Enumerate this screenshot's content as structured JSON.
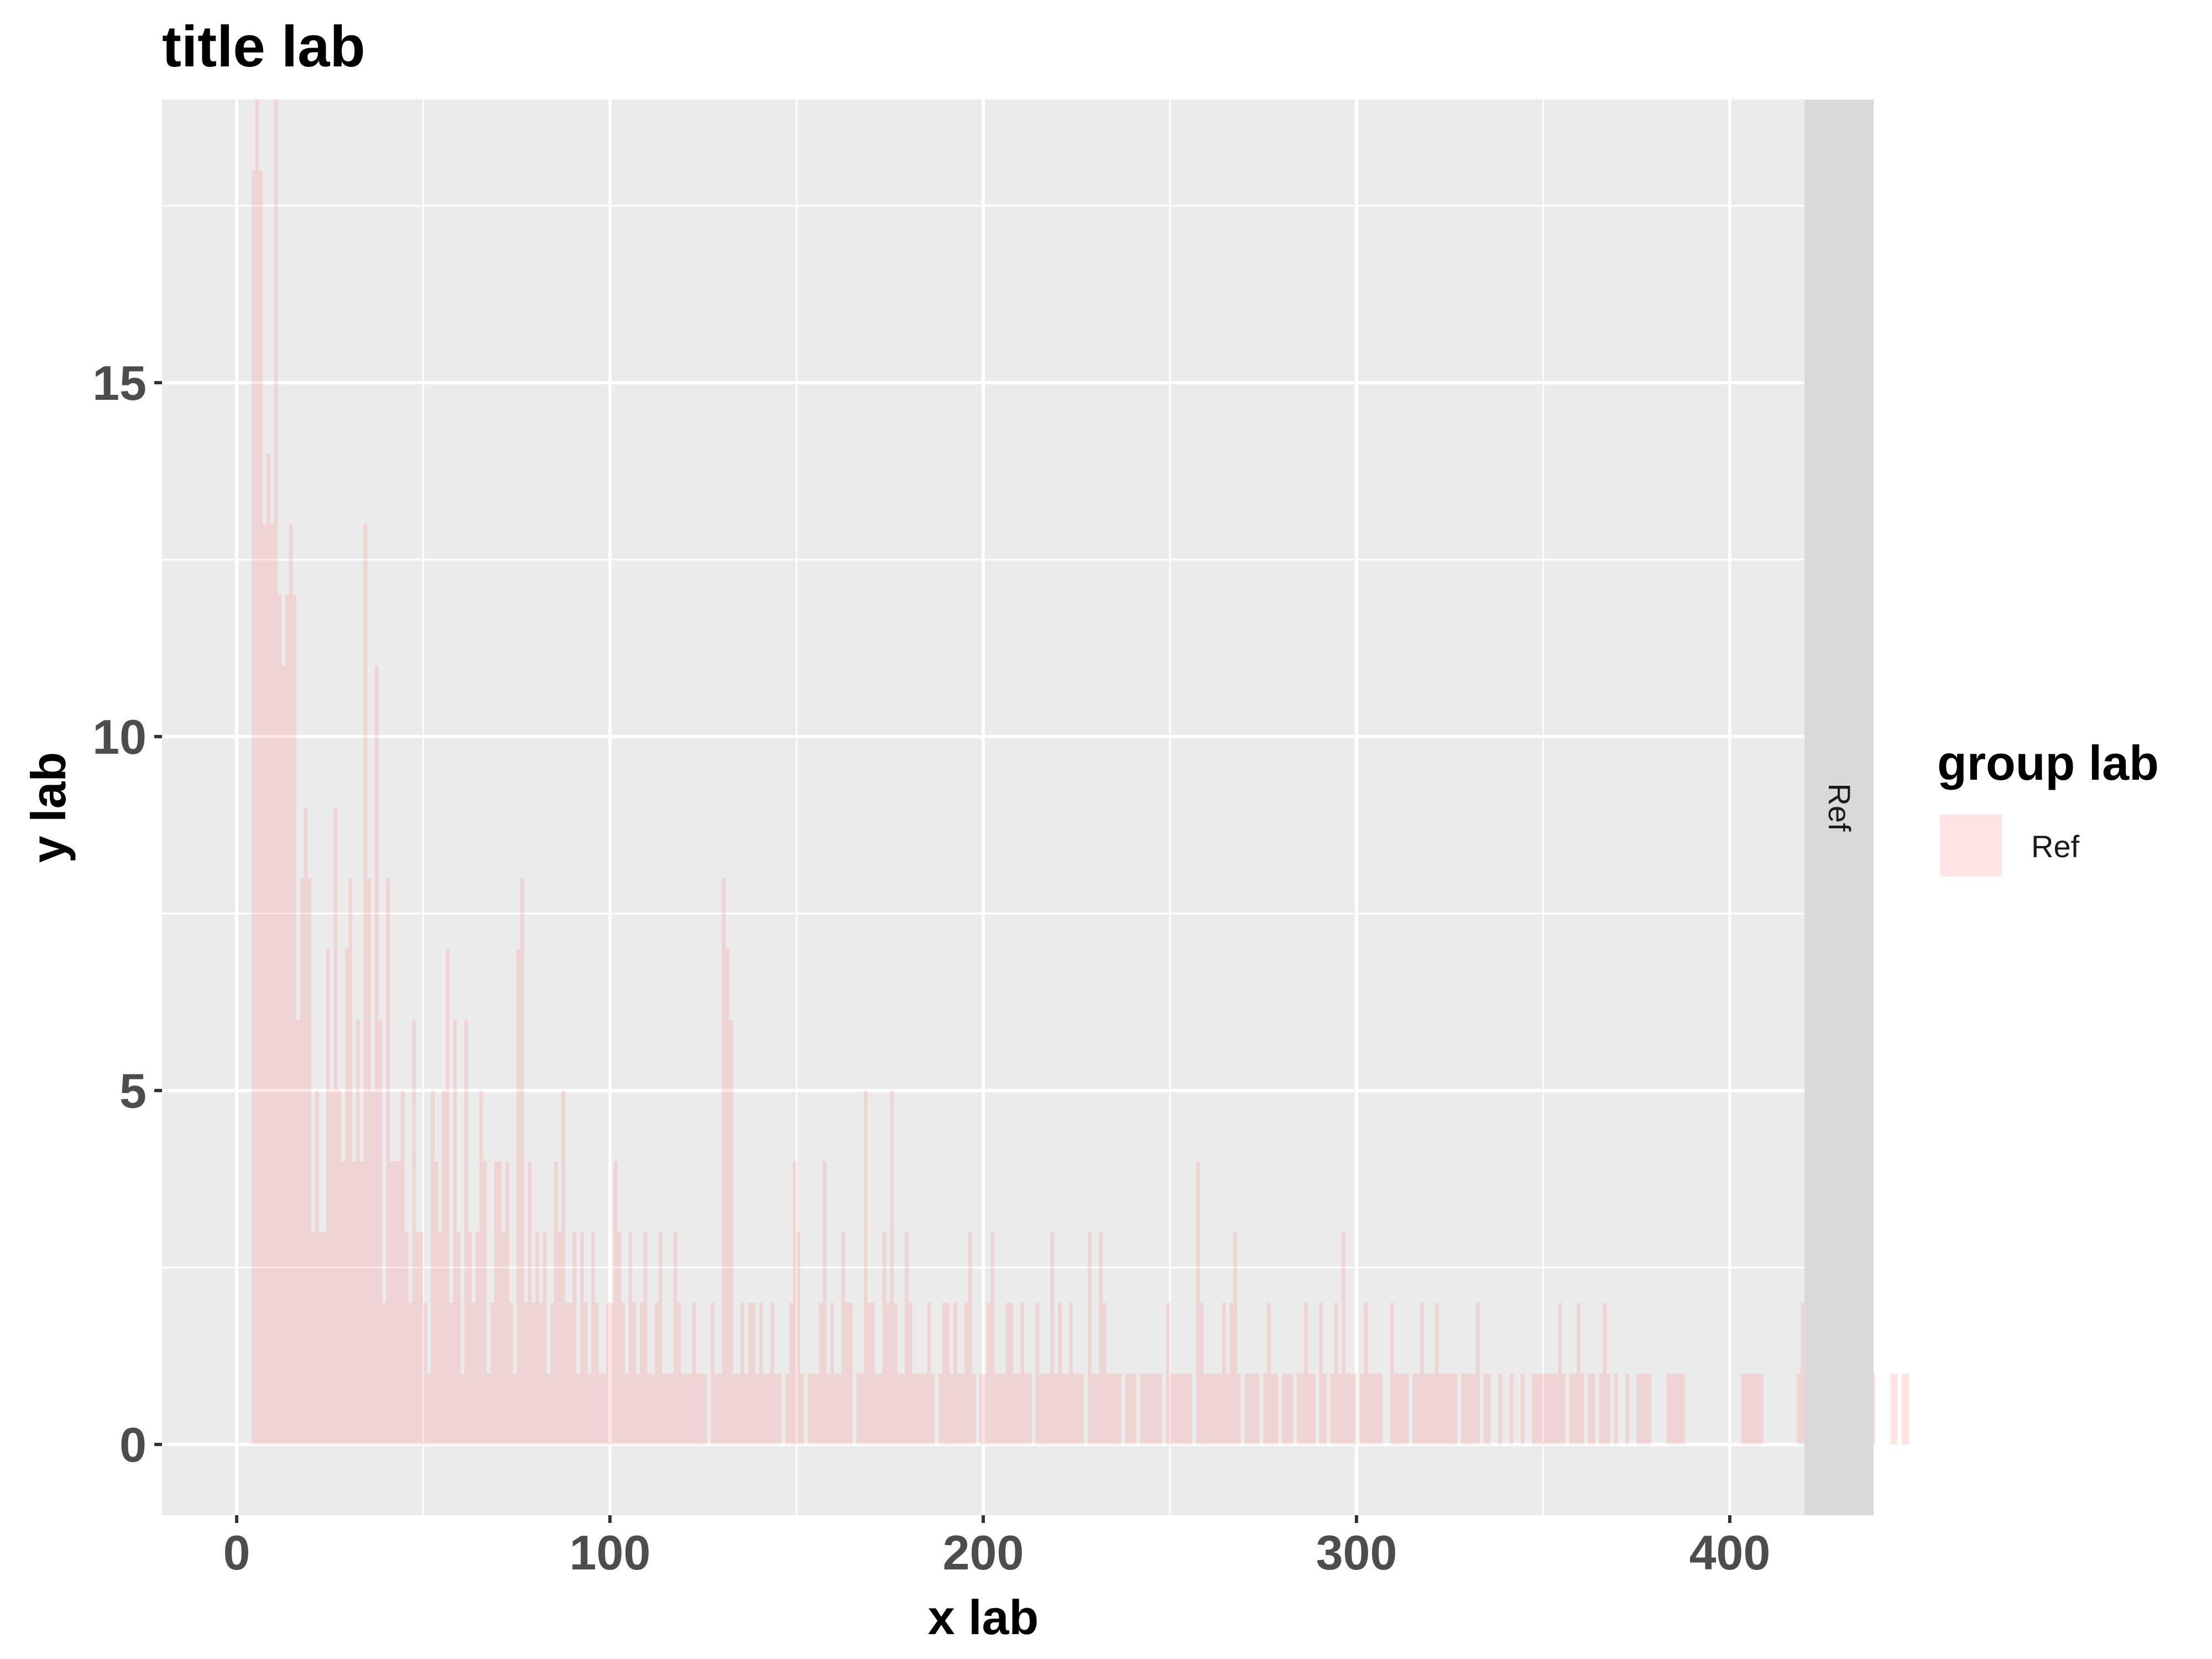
{
  "chart_data": {
    "type": "bar",
    "title": "title lab",
    "xlabel": "x lab",
    "ylabel": "y lab",
    "xlim": [
      -20,
      420
    ],
    "ylim": [
      -1,
      19
    ],
    "x_ticks": [
      0,
      100,
      200,
      300,
      400
    ],
    "y_ticks": [
      0,
      5,
      10,
      15
    ],
    "x_ticklabels": [
      "0",
      "100",
      "200",
      "300",
      "400"
    ],
    "y_ticklabels": [
      "0",
      "5",
      "10",
      "15"
    ],
    "grid": true,
    "legend": {
      "title": "group lab",
      "position": "right"
    },
    "facet_label": "Ref",
    "series": [
      {
        "name": "Ref",
        "color": "#f8766d",
        "opacity": 0.2,
        "bin_width": 1,
        "x_start": 4,
        "values": [
          18,
          19,
          18,
          13,
          14,
          13,
          19,
          12,
          11,
          12,
          13,
          12,
          6,
          8,
          9,
          8,
          3,
          5,
          3,
          3,
          7,
          5,
          9,
          5,
          4,
          7,
          8,
          4,
          6,
          4,
          13,
          8,
          5,
          11,
          6,
          2,
          8,
          4,
          4,
          4,
          5,
          3,
          2,
          6,
          3,
          3,
          2,
          1,
          5,
          4,
          3,
          5,
          7,
          2,
          6,
          3,
          1,
          6,
          3,
          2,
          3,
          5,
          4,
          1,
          2,
          4,
          4,
          3,
          4,
          2,
          1,
          7,
          8,
          2,
          4,
          2,
          3,
          2,
          3,
          1,
          2,
          4,
          3,
          5,
          2,
          2,
          3,
          1,
          3,
          2,
          1,
          3,
          2,
          1,
          1,
          2,
          2,
          4,
          3,
          2,
          1,
          3,
          2,
          1,
          2,
          3,
          1,
          1,
          2,
          3,
          1,
          1,
          1,
          3,
          2,
          1,
          1,
          1,
          2,
          1,
          1,
          1,
          0,
          2,
          1,
          1,
          8,
          7,
          6,
          1,
          1,
          2,
          1,
          2,
          2,
          1,
          2,
          1,
          1,
          2,
          1,
          1,
          0,
          1,
          2,
          4,
          3,
          1,
          0,
          1,
          1,
          1,
          2,
          4,
          1,
          2,
          1,
          1,
          3,
          2,
          2,
          0,
          1,
          1,
          5,
          2,
          2,
          1,
          1,
          3,
          2,
          5,
          2,
          1,
          1,
          3,
          2,
          1,
          1,
          1,
          1,
          2,
          1,
          0,
          1,
          2,
          2,
          1,
          2,
          1,
          1,
          2,
          3,
          1,
          0,
          1,
          1,
          2,
          3,
          1,
          1,
          1,
          2,
          2,
          1,
          1,
          2,
          1,
          1,
          0,
          2,
          1,
          1,
          1,
          3,
          1,
          2,
          1,
          1,
          2,
          1,
          1,
          1,
          0,
          3,
          1,
          1,
          3,
          2,
          1,
          1,
          1,
          1,
          0,
          1,
          1,
          1,
          0,
          1,
          1,
          1,
          1,
          1,
          1,
          0,
          2,
          1,
          1,
          1,
          1,
          1,
          1,
          0,
          4,
          2,
          1,
          1,
          1,
          1,
          1,
          2,
          1,
          2,
          3,
          1,
          0,
          1,
          1,
          1,
          1,
          0,
          1,
          2,
          1,
          1,
          0,
          1,
          1,
          1,
          0,
          1,
          1,
          2,
          1,
          1,
          0,
          2,
          1,
          0,
          1,
          2,
          1,
          3,
          1,
          1,
          1,
          0,
          1,
          2,
          1,
          1,
          1,
          1,
          0,
          0,
          2,
          1,
          1,
          1,
          1,
          0,
          1,
          1,
          2,
          1,
          1,
          1,
          2,
          1,
          1,
          1,
          1,
          1,
          0,
          1,
          1,
          1,
          1,
          2,
          0,
          1,
          1,
          0,
          0,
          1,
          0,
          0,
          1,
          0,
          0,
          1,
          0,
          0,
          1,
          1,
          1,
          1,
          1,
          1,
          1,
          2,
          1,
          0,
          1,
          1,
          2,
          1,
          0,
          1,
          1,
          0,
          1,
          2,
          1,
          0,
          1,
          0,
          0,
          1,
          0,
          0,
          1,
          1,
          1,
          1,
          0,
          0,
          0,
          0,
          1,
          1,
          1,
          1,
          1,
          0,
          0,
          0,
          0,
          0,
          0,
          0,
          0,
          0,
          0,
          0,
          0,
          0,
          0,
          0,
          1,
          1,
          1,
          1,
          1,
          1,
          0,
          0,
          0,
          0,
          0,
          0,
          0,
          0,
          0,
          1,
          2,
          0,
          1,
          1,
          0,
          0,
          1,
          1,
          0,
          1,
          1,
          0,
          1,
          1,
          0,
          0,
          0,
          1,
          2,
          1,
          0,
          0,
          0,
          0,
          1,
          1,
          0,
          1,
          1,
          0
        ]
      }
    ]
  }
}
